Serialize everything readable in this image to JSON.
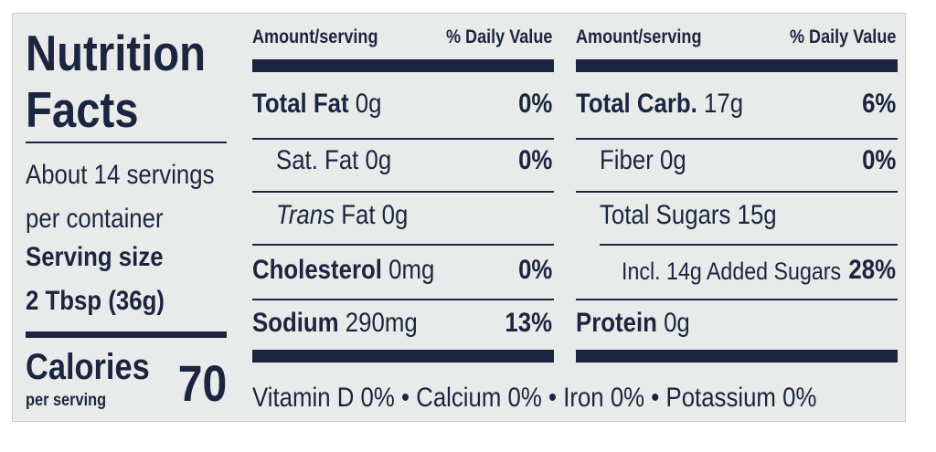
{
  "panel": {
    "title_line1": "Nutrition",
    "title_line2": "Facts",
    "servings_line1": "About 14 servings",
    "servings_line2": "per container",
    "serving_size_label": "Serving size",
    "serving_size_value": "2 Tbsp (36g)",
    "calories_label": "Calories",
    "calories_sub": "per serving",
    "calories_value": "70"
  },
  "headers": {
    "amount": "Amount/serving",
    "daily_value": "% Daily Value"
  },
  "left_column": {
    "total_fat": {
      "label": "Total Fat",
      "amount": "0g",
      "dv": "0%"
    },
    "sat_fat": {
      "label": "Sat. Fat",
      "amount": "0g",
      "dv": "0%"
    },
    "trans_fat": {
      "label_italic": "Trans",
      "label": "Fat",
      "amount": "0g"
    },
    "cholesterol": {
      "label": "Cholesterol",
      "amount": "0mg",
      "dv": "0%"
    },
    "sodium": {
      "label": "Sodium",
      "amount": "290mg",
      "dv": "13%"
    }
  },
  "right_column": {
    "total_carb": {
      "label": "Total Carb.",
      "amount": "17g",
      "dv": "6%"
    },
    "fiber": {
      "label": "Fiber",
      "amount": "0g",
      "dv": "0%"
    },
    "total_sugars": {
      "label": "Total Sugars",
      "amount": "15g"
    },
    "added_sugars": {
      "label": "Incl. 14g Added Sugars",
      "dv": "28%"
    },
    "protein": {
      "label": "Protein",
      "amount": "0g"
    }
  },
  "footer": {
    "vitamins": "Vitamin D 0% • Calcium 0% • Iron 0% • Potassium 0%"
  },
  "colors": {
    "ink": "#1c2540",
    "background": "#e8ebe9"
  }
}
